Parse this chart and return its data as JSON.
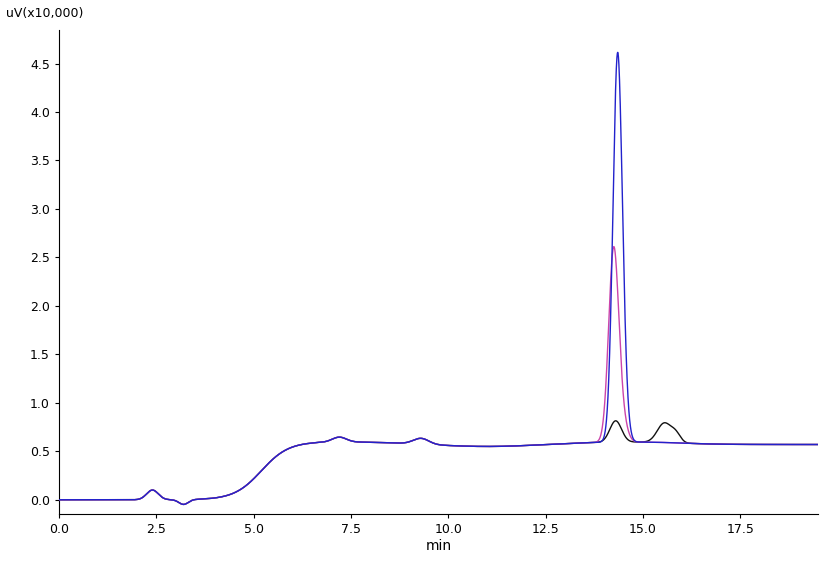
{
  "ylabel": "uV(x10,000)",
  "xlabel": "min",
  "xlim": [
    0.0,
    19.5
  ],
  "ylim": [
    -0.15,
    4.85
  ],
  "yticks": [
    0.0,
    0.5,
    1.0,
    1.5,
    2.0,
    2.5,
    3.0,
    3.5,
    4.0,
    4.5
  ],
  "xticks": [
    0.0,
    2.5,
    5.0,
    7.5,
    10.0,
    12.5,
    15.0,
    17.5
  ],
  "xtick_labels": [
    "0.0",
    "2.5",
    "5.0",
    "7.5",
    "10.0",
    "12.5",
    "15.0",
    "17.5"
  ],
  "background_color": "#ffffff",
  "line_blue_color": "#2222cc",
  "line_pink_color": "#cc44aa",
  "line_black_color": "#111111",
  "line_width": 1.0
}
